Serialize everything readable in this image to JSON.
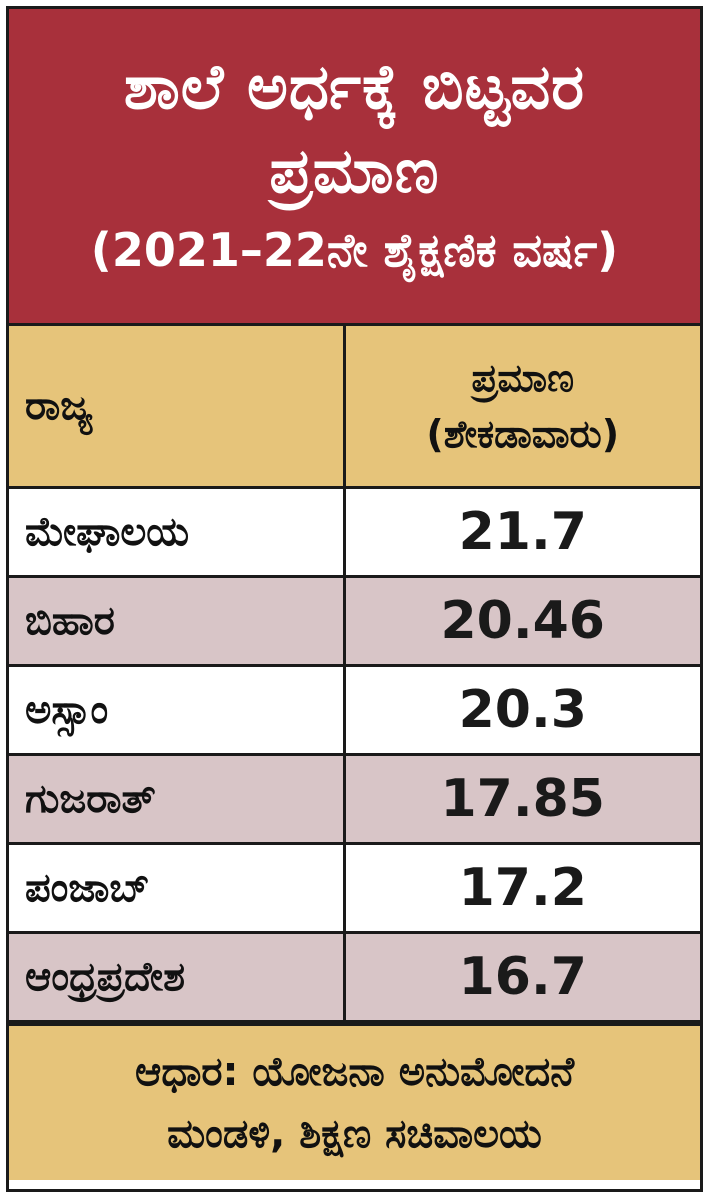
{
  "title": {
    "line1": "ಶಾಲೆ ಅರ್ಧಕ್ಕೆ ಬಿಟ್ಟವರ",
    "line2": "ಪ್ರಮಾಣ",
    "line3": "(2021–22ನೇ ಶೈಕ್ಷಣಿಕ ವರ್ಷ)"
  },
  "table": {
    "header_state": "ರಾಜ್ಯ",
    "header_value_line1": "ಪ್ರಮಾಣ",
    "header_value_line2": "(ಶೇಕಡಾವಾರು)",
    "rows": [
      {
        "state": "ಮೇಘಾಲಯ",
        "value": "21.7"
      },
      {
        "state": "ಬಿಹಾರ",
        "value": "20.46"
      },
      {
        "state": "ಅಸ್ಸಾಂ",
        "value": "20.3"
      },
      {
        "state": "ಗುಜರಾತ್",
        "value": "17.85"
      },
      {
        "state": "ಪಂಜಾಬ್",
        "value": "17.2"
      },
      {
        "state": "ಆಂಧ್ರಪ್ರದೇಶ",
        "value": "16.7"
      }
    ]
  },
  "footer": {
    "line1": "ಆಧಾರ: ಯೋಜನಾ ಅನುಮೋದನೆ",
    "line2": "ಮಂಡಳಿ, ಶಿಕ್ಷಣ ಸಚಿವಾಲಯ"
  },
  "colors": {
    "title_bg": "#a8303b",
    "header_bg": "#e6c47a",
    "alt_row_bg": "#d8c5c7"
  }
}
